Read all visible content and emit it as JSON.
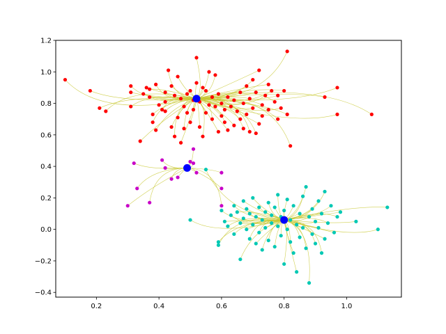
{
  "chart_data": {
    "type": "scatter",
    "xlim": [
      0.07,
      1.175
    ],
    "ylim": [
      -0.43,
      1.2
    ],
    "x_ticks": [
      0.2,
      0.4,
      0.6,
      0.8,
      1.0
    ],
    "x_tick_labels": [
      "0.2",
      "0.4",
      "0.6",
      "0.8",
      "1.0"
    ],
    "y_ticks": [
      -0.4,
      -0.2,
      0.0,
      0.2,
      0.4,
      0.6,
      0.8,
      1.0,
      1.2
    ],
    "y_tick_labels": [
      "−0.4",
      "−0.2",
      "0.0",
      "0.2",
      "0.4",
      "0.6",
      "0.8",
      "1.0",
      "1.2"
    ],
    "grid": false,
    "edge_color": "#c8c832",
    "center_color": "#0000ff",
    "clusters": [
      {
        "color": "#ff0000",
        "center": [
          0.52,
          0.83
        ],
        "points": [
          [
            0.1,
            0.95
          ],
          [
            0.18,
            0.88
          ],
          [
            0.21,
            0.77
          ],
          [
            0.23,
            0.75
          ],
          [
            0.31,
            0.91
          ],
          [
            0.31,
            0.87
          ],
          [
            0.31,
            0.78
          ],
          [
            0.34,
            0.56
          ],
          [
            0.35,
            0.86
          ],
          [
            0.36,
            0.9
          ],
          [
            0.37,
            0.89
          ],
          [
            0.37,
            0.84
          ],
          [
            0.38,
            0.73
          ],
          [
            0.38,
            0.68
          ],
          [
            0.39,
            0.92
          ],
          [
            0.39,
            0.63
          ],
          [
            0.4,
            0.79
          ],
          [
            0.41,
            0.76
          ],
          [
            0.42,
            0.87
          ],
          [
            0.42,
            0.75
          ],
          [
            0.42,
            0.81
          ],
          [
            0.43,
            1.01
          ],
          [
            0.44,
            0.65
          ],
          [
            0.44,
            0.91
          ],
          [
            0.45,
            0.59
          ],
          [
            0.45,
            0.85
          ],
          [
            0.46,
            0.71
          ],
          [
            0.46,
            0.97
          ],
          [
            0.47,
            0.55
          ],
          [
            0.47,
            0.83
          ],
          [
            0.48,
            0.64
          ],
          [
            0.48,
            0.78
          ],
          [
            0.49,
            0.86
          ],
          [
            0.49,
            0.74
          ],
          [
            0.5,
            0.88
          ],
          [
            0.5,
            0.68
          ],
          [
            0.51,
            0.82
          ],
          [
            0.51,
            0.76
          ],
          [
            0.52,
            1.09
          ],
          [
            0.52,
            0.93
          ],
          [
            0.53,
            0.65
          ],
          [
            0.53,
            0.81
          ],
          [
            0.54,
            0.59
          ],
          [
            0.54,
            0.9
          ],
          [
            0.55,
            0.88
          ],
          [
            0.55,
            0.74
          ],
          [
            0.56,
            0.79
          ],
          [
            0.56,
            1.0
          ],
          [
            0.57,
            0.84
          ],
          [
            0.57,
            0.7
          ],
          [
            0.58,
            0.78
          ],
          [
            0.58,
            0.98
          ],
          [
            0.59,
            0.62
          ],
          [
            0.59,
            0.86
          ],
          [
            0.6,
            0.8
          ],
          [
            0.6,
            0.72
          ],
          [
            0.61,
            0.76
          ],
          [
            0.61,
            0.68
          ],
          [
            0.62,
            0.84
          ],
          [
            0.62,
            0.63
          ],
          [
            0.63,
            0.78
          ],
          [
            0.64,
            0.82
          ],
          [
            0.64,
            0.66
          ],
          [
            0.65,
            0.75
          ],
          [
            0.66,
            0.87
          ],
          [
            0.66,
            0.7
          ],
          [
            0.67,
            0.8
          ],
          [
            0.67,
            0.64
          ],
          [
            0.68,
            0.91
          ],
          [
            0.68,
            0.73
          ],
          [
            0.69,
            0.62
          ],
          [
            0.69,
            0.83
          ],
          [
            0.7,
            0.95
          ],
          [
            0.7,
            0.77
          ],
          [
            0.71,
            0.61
          ],
          [
            0.71,
            0.87
          ],
          [
            0.72,
            0.67
          ],
          [
            0.72,
            1.01
          ],
          [
            0.73,
            0.79
          ],
          [
            0.73,
            0.72
          ],
          [
            0.74,
            0.85
          ],
          [
            0.75,
            0.92
          ],
          [
            0.75,
            0.76
          ],
          [
            0.76,
            0.88
          ],
          [
            0.77,
            0.81
          ],
          [
            0.78,
            0.7
          ],
          [
            0.78,
            0.85
          ],
          [
            0.79,
            0.77
          ],
          [
            0.8,
            0.88
          ],
          [
            0.81,
            0.73
          ],
          [
            0.81,
            1.13
          ],
          [
            0.82,
            0.53
          ],
          [
            0.93,
            0.84
          ],
          [
            0.97,
            0.9
          ],
          [
            0.97,
            0.73
          ],
          [
            1.08,
            0.73
          ]
        ]
      },
      {
        "color": "#c800c8",
        "center": [
          0.49,
          0.39
        ],
        "points": [
          [
            0.3,
            0.15
          ],
          [
            0.32,
            0.42
          ],
          [
            0.33,
            0.26
          ],
          [
            0.37,
            0.17
          ],
          [
            0.41,
            0.44
          ],
          [
            0.42,
            0.39
          ],
          [
            0.44,
            0.32
          ],
          [
            0.46,
            0.33
          ],
          [
            0.5,
            0.43
          ],
          [
            0.51,
            0.51
          ],
          [
            0.51,
            0.42
          ],
          [
            0.52,
            0.36
          ],
          [
            0.6,
            0.36
          ],
          [
            0.6,
            0.26
          ],
          [
            0.6,
            0.15
          ]
        ]
      },
      {
        "color": "#00c8b4",
        "center": [
          0.8,
          0.06
        ],
        "points": [
          [
            0.5,
            0.06
          ],
          [
            0.55,
            0.38
          ],
          [
            0.59,
            -0.08
          ],
          [
            0.59,
            -0.1
          ],
          [
            0.6,
            0.12
          ],
          [
            0.61,
            0.05
          ],
          [
            0.62,
            0.02
          ],
          [
            0.63,
            0.09
          ],
          [
            0.64,
            0.15
          ],
          [
            0.64,
            -0.03
          ],
          [
            0.65,
            0.11
          ],
          [
            0.66,
            0.04
          ],
          [
            0.66,
            -0.19
          ],
          [
            0.67,
            0.18
          ],
          [
            0.67,
            0.07
          ],
          [
            0.68,
            0.0
          ],
          [
            0.68,
            0.13
          ],
          [
            0.69,
            -0.06
          ],
          [
            0.69,
            0.1
          ],
          [
            0.7,
            0.03
          ],
          [
            0.7,
            0.2
          ],
          [
            0.71,
            -0.09
          ],
          [
            0.71,
            0.08
          ],
          [
            0.72,
            0.14
          ],
          [
            0.72,
            -0.02
          ],
          [
            0.73,
            0.06
          ],
          [
            0.73,
            -0.13
          ],
          [
            0.74,
            0.11
          ],
          [
            0.74,
            0.01
          ],
          [
            0.75,
            0.17
          ],
          [
            0.75,
            -0.07
          ],
          [
            0.76,
            0.09
          ],
          [
            0.76,
            0.04
          ],
          [
            0.77,
            -0.11
          ],
          [
            0.77,
            0.14
          ],
          [
            0.78,
            0.02
          ],
          [
            0.78,
            0.22
          ],
          [
            0.79,
            -0.04
          ],
          [
            0.79,
            0.08
          ],
          [
            0.8,
            -0.22
          ],
          [
            0.8,
            0.12
          ],
          [
            0.81,
            0.0
          ],
          [
            0.81,
            0.19
          ],
          [
            0.82,
            -0.08
          ],
          [
            0.82,
            0.06
          ],
          [
            0.83,
            -0.15
          ],
          [
            0.83,
            0.15
          ],
          [
            0.84,
            0.03
          ],
          [
            0.84,
            -0.27
          ],
          [
            0.85,
            0.1
          ],
          [
            0.85,
            -0.05
          ],
          [
            0.86,
            0.21
          ],
          [
            0.86,
            0.01
          ],
          [
            0.87,
            -0.12
          ],
          [
            0.87,
            0.27
          ],
          [
            0.88,
            0.08
          ],
          [
            0.88,
            -0.34
          ],
          [
            0.89,
            -0.03
          ],
          [
            0.89,
            0.13
          ],
          [
            0.9,
            0.05
          ],
          [
            0.9,
            -0.09
          ],
          [
            0.91,
            0.18
          ],
          [
            0.91,
            0.01
          ],
          [
            0.92,
            -0.15
          ],
          [
            0.92,
            0.1
          ],
          [
            0.93,
            0.24
          ],
          [
            0.93,
            -0.06
          ],
          [
            0.94,
            0.04
          ],
          [
            0.95,
            0.15
          ],
          [
            0.96,
            -0.02
          ],
          [
            0.97,
            0.08
          ],
          [
            0.98,
            0.11
          ],
          [
            1.03,
            0.05
          ],
          [
            1.1,
            0.0
          ],
          [
            1.13,
            0.14
          ]
        ]
      }
    ]
  }
}
